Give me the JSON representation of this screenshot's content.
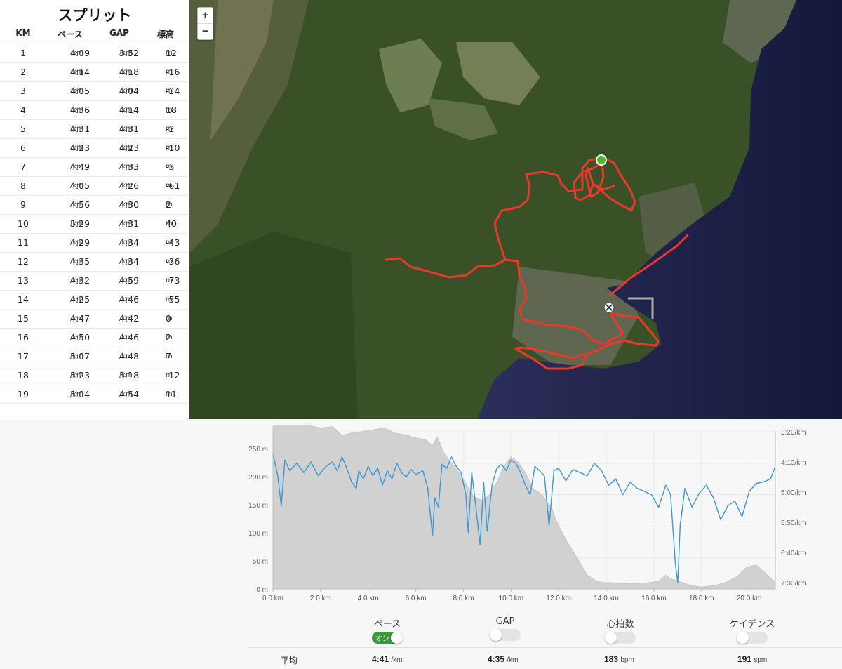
{
  "splits": {
    "title": "スプリット",
    "headers": {
      "km": "KM",
      "pace": "ペース",
      "gap": "GAP",
      "elev": "標高"
    },
    "pace_unit": "/km",
    "elev_unit": "m",
    "rows": [
      {
        "km": "1",
        "pace": "4:09",
        "gap": "3:52",
        "elev": "12"
      },
      {
        "km": "2",
        "pace": "4:14",
        "gap": "4:18",
        "elev": "-16"
      },
      {
        "km": "3",
        "pace": "4:05",
        "gap": "4:04",
        "elev": "-24"
      },
      {
        "km": "4",
        "pace": "4:36",
        "gap": "4:14",
        "elev": "18"
      },
      {
        "km": "5",
        "pace": "4:31",
        "gap": "4:31",
        "elev": "-2"
      },
      {
        "km": "6",
        "pace": "4:23",
        "gap": "4:23",
        "elev": "-10"
      },
      {
        "km": "7",
        "pace": "4:49",
        "gap": "4:33",
        "elev": "-3"
      },
      {
        "km": "8",
        "pace": "4:05",
        "gap": "4:26",
        "elev": "-61"
      },
      {
        "km": "9",
        "pace": "4:56",
        "gap": "4:30",
        "elev": "2"
      },
      {
        "km": "10",
        "pace": "5:29",
        "gap": "4:31",
        "elev": "40"
      },
      {
        "km": "11",
        "pace": "4:29",
        "gap": "4:34",
        "elev": "-43"
      },
      {
        "km": "12",
        "pace": "4:35",
        "gap": "4:34",
        "elev": "-36"
      },
      {
        "km": "13",
        "pace": "4:32",
        "gap": "4:59",
        "elev": "-73"
      },
      {
        "km": "14",
        "pace": "4:25",
        "gap": "4:46",
        "elev": "-55"
      },
      {
        "km": "15",
        "pace": "4:47",
        "gap": "4:42",
        "elev": "0"
      },
      {
        "km": "16",
        "pace": "4:50",
        "gap": "4:46",
        "elev": "2"
      },
      {
        "km": "17",
        "pace": "5:07",
        "gap": "4:48",
        "elev": "7"
      },
      {
        "km": "18",
        "pace": "5:23",
        "gap": "5:18",
        "elev": "-12"
      },
      {
        "km": "19",
        "pace": "5:04",
        "gap": "4:54",
        "elev": "11"
      }
    ]
  },
  "map": {
    "zoom_in": "+",
    "zoom_out": "−",
    "route_color": "#e8392b",
    "start_marker_color": "#4db82f"
  },
  "chart_data": {
    "type": "area",
    "xlabel": "",
    "x_ticks": [
      "0.0 km",
      "2.0 km",
      "4.0 km",
      "6.0 km",
      "8.0 km",
      "10.0 km",
      "12.0 km",
      "14.0 km",
      "16.0 km",
      "18.0 km",
      "20.0 km"
    ],
    "xlim": [
      0,
      21.1
    ],
    "y_left_ticks": [
      "0 m",
      "50 m",
      "100 m",
      "150 m",
      "200 m",
      "250 m"
    ],
    "y_left_range": [
      0,
      250
    ],
    "y_right_ticks": [
      "3:20/km",
      "4:10/km",
      "5:00/km",
      "5:50/km",
      "6:40/km",
      "7:30/km"
    ],
    "y_right_range_sec_per_km": [
      200,
      450
    ],
    "series": [
      {
        "kind": "elevation",
        "color": "#d0d0d0",
        "x": [
          0,
          0.4,
          0.8,
          1.1,
          1.5,
          2.0,
          2.5,
          2.9,
          3.3,
          3.7,
          4.2,
          4.7,
          5.1,
          5.6,
          6.0,
          6.4,
          6.7,
          6.9,
          7.2,
          7.5,
          7.8,
          8.1,
          8.4,
          8.8,
          9.1,
          9.4,
          9.7,
          10.0,
          10.3,
          10.6,
          10.9,
          11.3,
          11.7,
          12.0,
          12.4,
          12.8,
          13.2,
          13.6,
          13.9,
          14.2,
          14.6,
          15.0,
          15.4,
          15.8,
          16.2,
          16.5,
          16.7,
          16.9,
          17.2,
          17.6,
          18.0,
          18.5,
          19.0,
          19.5,
          19.9,
          20.3,
          20.7,
          21.1
        ],
        "values": [
          258,
          265,
          272,
          270,
          260,
          256,
          258,
          244,
          248,
          250,
          253,
          256,
          248,
          245,
          240,
          238,
          228,
          242,
          215,
          200,
          185,
          168,
          148,
          140,
          150,
          170,
          195,
          210,
          202,
          185,
          160,
          150,
          128,
          100,
          72,
          48,
          22,
          12,
          10,
          10,
          9,
          8,
          9,
          10,
          12,
          22,
          16,
          14,
          10,
          5,
          3,
          5,
          10,
          20,
          35,
          38,
          25,
          10
        ]
      },
      {
        "kind": "pace",
        "color": "#3a98d8",
        "x": [
          0,
          0.2,
          0.35,
          0.5,
          0.7,
          1.0,
          1.3,
          1.6,
          1.9,
          2.2,
          2.5,
          2.7,
          2.9,
          3.1,
          3.3,
          3.5,
          3.6,
          3.8,
          4.0,
          4.2,
          4.4,
          4.6,
          4.8,
          5.0,
          5.2,
          5.4,
          5.6,
          5.8,
          6.0,
          6.3,
          6.5,
          6.7,
          6.8,
          6.95,
          7.1,
          7.3,
          7.5,
          7.7,
          7.9,
          8.1,
          8.2,
          8.35,
          8.5,
          8.7,
          8.85,
          9.0,
          9.2,
          9.4,
          9.6,
          9.8,
          10.0,
          10.2,
          10.4,
          10.6,
          10.8,
          11.0,
          11.2,
          11.4,
          11.6,
          11.8,
          12.0,
          12.3,
          12.6,
          12.9,
          13.2,
          13.5,
          13.8,
          14.1,
          14.4,
          14.7,
          15.0,
          15.3,
          15.6,
          15.9,
          16.2,
          16.5,
          16.7,
          16.9,
          17.0,
          17.1,
          17.3,
          17.6,
          17.9,
          18.2,
          18.5,
          18.8,
          19.1,
          19.4,
          19.7,
          20.0,
          20.3,
          20.6,
          20.9,
          21.1
        ],
        "values": [
          235,
          270,
          318,
          245,
          262,
          250,
          265,
          248,
          270,
          256,
          248,
          262,
          240,
          258,
          280,
          290,
          262,
          275,
          255,
          270,
          258,
          285,
          262,
          275,
          250,
          265,
          272,
          260,
          268,
          262,
          290,
          365,
          305,
          320,
          252,
          258,
          240,
          255,
          265,
          300,
          360,
          265,
          312,
          380,
          280,
          358,
          285,
          258,
          252,
          262,
          245,
          250,
          265,
          285,
          300,
          255,
          262,
          270,
          350,
          262,
          258,
          278,
          260,
          265,
          270,
          250,
          262,
          285,
          275,
          300,
          280,
          290,
          295,
          300,
          320,
          285,
          300,
          410,
          440,
          350,
          290,
          320,
          298,
          285,
          305,
          340,
          318,
          310,
          335,
          295,
          282,
          280,
          275,
          255
        ]
      }
    ]
  },
  "toggles": [
    {
      "label": "ペース",
      "state": "on",
      "on_text": "オン"
    },
    {
      "label": "GAP",
      "state": "off"
    },
    {
      "label": "心拍数",
      "state": "off"
    },
    {
      "label": "ケイデンス",
      "state": "off"
    }
  ],
  "averages": {
    "label": "平均",
    "pace": "4:41",
    "pace_unit": "/km",
    "gap": "4:35",
    "gap_unit": "/km",
    "hr": "183",
    "hr_unit": "bpm",
    "cadence": "191",
    "cadence_unit": "spm"
  }
}
